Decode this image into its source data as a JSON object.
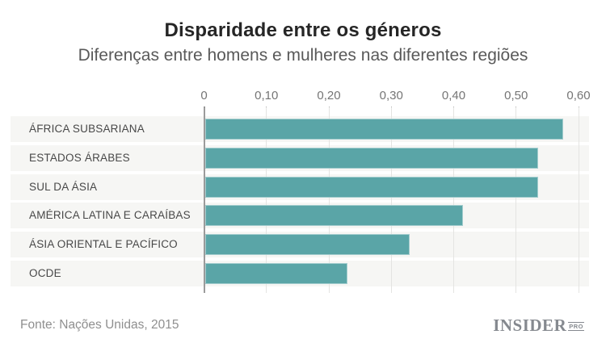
{
  "header": {
    "title": "Disparidade entre os géneros",
    "subtitle": "Diferenças entre homens e mulheres nas diferentes regiões"
  },
  "chart_data": {
    "type": "bar",
    "orientation": "horizontal",
    "title": "Disparidade entre os géneros",
    "subtitle": "Diferenças entre homens e mulheres nas diferentes regiões",
    "categories": [
      "ÁFRICA SUBSARIANA",
      "ESTADOS ÁRABES",
      "SUL DA ÁSIA",
      "AMÉRICA LATINA E CARAÍBAS",
      "ÁSIA ORIENTAL E PACÍFICO",
      "OCDE"
    ],
    "values": [
      0.575,
      0.535,
      0.535,
      0.415,
      0.33,
      0.23
    ],
    "xlabel": "",
    "ylabel": "",
    "xlim": [
      0,
      0.6
    ],
    "x_ticks": [
      0,
      0.1,
      0.2,
      0.3,
      0.4,
      0.5,
      0.6
    ],
    "x_tick_labels": [
      "0",
      "0,10",
      "0,20",
      "0,30",
      "0,40",
      "0,50",
      "0,60"
    ],
    "grid": true,
    "legend": "none",
    "bar_color": "#5aa5a7",
    "row_band_color": "#f6f6f4"
  },
  "footer": {
    "source": "Fonte: Nações Unidas, 2015",
    "logo": {
      "name": "INSIDER",
      "suffix": "PRO"
    }
  },
  "colors": {
    "bar": "#5aa5a7",
    "band": "#f6f6f4",
    "gridline": "#e4e4e2",
    "zero_axis": "#9b9b9b",
    "title": "#262626",
    "subtitle": "#595959",
    "tick_text": "#757575",
    "label_text": "#484848",
    "source_text": "#8f8f8f",
    "logo_text": "#85898f"
  }
}
